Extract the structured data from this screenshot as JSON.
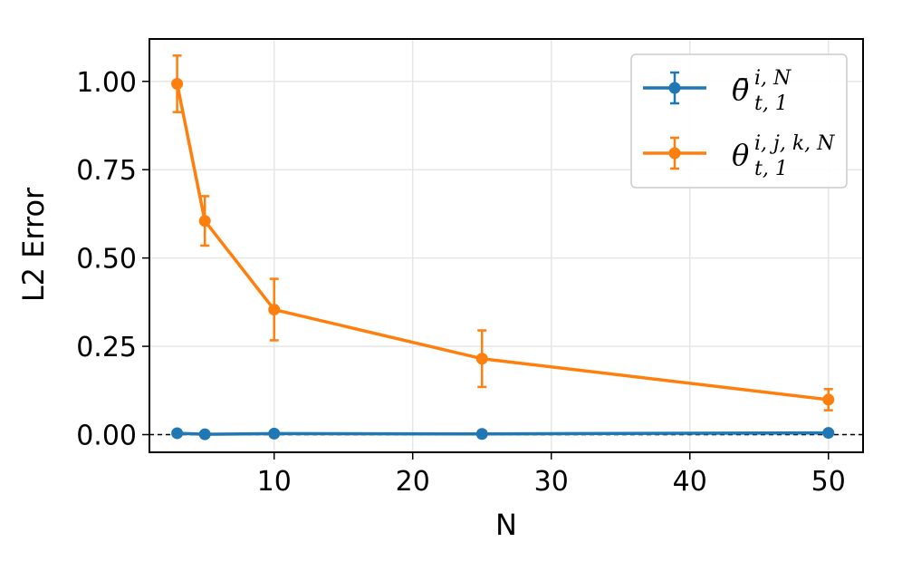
{
  "chart_data": {
    "type": "line",
    "xlabel": "N",
    "ylabel": "L2 Error",
    "xlim": [
      1,
      52.5
    ],
    "ylim": [
      -0.05,
      1.12
    ],
    "xticks": [
      {
        "value": 10,
        "label": "10"
      },
      {
        "value": 20,
        "label": "20"
      },
      {
        "value": 30,
        "label": "30"
      },
      {
        "value": 40,
        "label": "40"
      },
      {
        "value": 50,
        "label": "50"
      }
    ],
    "yticks": [
      {
        "value": 0,
        "label": "0.00"
      },
      {
        "value": 0.25,
        "label": "0.25"
      },
      {
        "value": 0.5,
        "label": "0.50"
      },
      {
        "value": 0.75,
        "label": "0.75"
      },
      {
        "value": 1.0,
        "label": "1.00"
      }
    ],
    "grid": true,
    "reference_line": {
      "y": 0,
      "style": "dashed",
      "color": "#000000"
    },
    "legend_position": "top-right",
    "series": [
      {
        "name": "θ̄_{t,1}^{i,N}",
        "legend_base": "θ̄",
        "legend_sup": "i, N",
        "legend_sub": "t, 1",
        "color": "#1f77b4",
        "x": [
          3,
          5,
          10,
          25,
          50
        ],
        "y": [
          0.004,
          0.001,
          0.003,
          0.002,
          0.005
        ],
        "err": [
          0.003,
          0.002,
          0.003,
          0.002,
          0.003
        ]
      },
      {
        "name": "θ_{t,1}^{i,j,k,N}",
        "legend_base": "θ",
        "legend_sup": "i, j, k, N",
        "legend_sub": "t, 1",
        "color": "#ff7f0e",
        "x": [
          3,
          5,
          10,
          25,
          50
        ],
        "y": [
          0.993,
          0.605,
          0.354,
          0.215,
          0.099
        ],
        "err": [
          0.08,
          0.07,
          0.087,
          0.08,
          0.03
        ]
      }
    ]
  }
}
